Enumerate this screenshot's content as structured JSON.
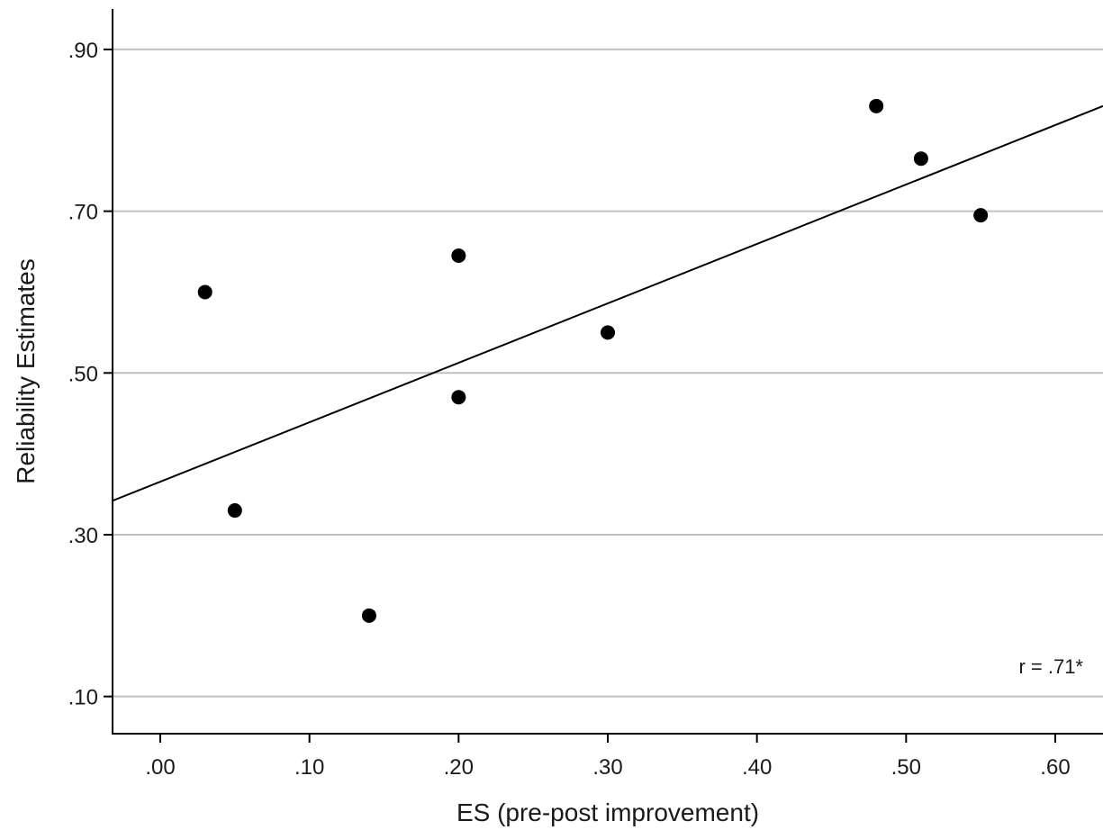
{
  "chart_data": {
    "type": "scatter",
    "xlabel": "ES (pre-post improvement)",
    "ylabel": "Reliability Estimates",
    "xlim": [
      -0.032,
      0.632
    ],
    "ylim": [
      0.054,
      0.95
    ],
    "x_ticks": [
      0.0,
      0.1,
      0.2,
      0.3,
      0.4,
      0.5,
      0.6
    ],
    "x_tick_labels": [
      ".00",
      ".10",
      ".20",
      ".30",
      ".40",
      ".50",
      ".60"
    ],
    "y_ticks": [
      0.1,
      0.3,
      0.5,
      0.7,
      0.9
    ],
    "y_tick_labels": [
      ".10",
      ".30",
      ".50",
      ".70",
      ".90"
    ],
    "grid": "horizontal",
    "points": [
      {
        "x": 0.03,
        "y": 0.6
      },
      {
        "x": 0.05,
        "y": 0.33
      },
      {
        "x": 0.14,
        "y": 0.2
      },
      {
        "x": 0.2,
        "y": 0.645
      },
      {
        "x": 0.2,
        "y": 0.47
      },
      {
        "x": 0.3,
        "y": 0.55
      },
      {
        "x": 0.48,
        "y": 0.83
      },
      {
        "x": 0.51,
        "y": 0.765
      },
      {
        "x": 0.55,
        "y": 0.695
      }
    ],
    "fit_line": {
      "x": [
        -0.032,
        0.632
      ],
      "y": [
        0.342,
        0.83
      ]
    },
    "annotation": "r = .71*"
  },
  "colors": {
    "points": "#000000",
    "line": "#000000",
    "grid": "#c0c0c0",
    "axis": "#000000"
  }
}
